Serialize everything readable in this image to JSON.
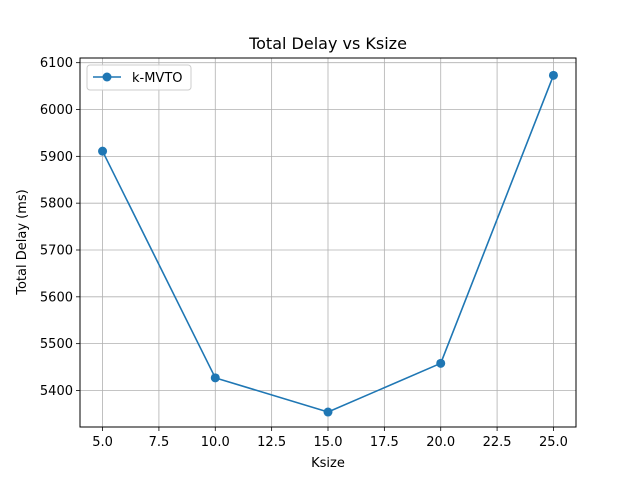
{
  "chart_data": {
    "type": "line",
    "title": "Total Delay vs Ksize",
    "xlabel": "Ksize",
    "ylabel": "Total Delay (ms)",
    "xlim": [
      4.0,
      26.0
    ],
    "ylim": [
      5322,
      6110
    ],
    "x_ticks": [
      5.0,
      7.5,
      10.0,
      12.5,
      15.0,
      17.5,
      20.0,
      22.5,
      25.0
    ],
    "x_tick_labels": [
      "5.0",
      "7.5",
      "10.0",
      "12.5",
      "15.0",
      "17.5",
      "20.0",
      "22.5",
      "25.0"
    ],
    "y_ticks": [
      5400,
      5500,
      5600,
      5700,
      5800,
      5900,
      6000,
      6100
    ],
    "y_tick_labels": [
      "5400",
      "5500",
      "5600",
      "5700",
      "5800",
      "5900",
      "6000",
      "6100"
    ],
    "grid": true,
    "legend_position": "top-left",
    "x": [
      5,
      10,
      15,
      20,
      25
    ],
    "series": [
      {
        "name": "k-MVTO",
        "values": [
          5911,
          5427,
          5354,
          5458,
          6073
        ],
        "color": "#1f77b4",
        "marker": "circle"
      }
    ]
  }
}
